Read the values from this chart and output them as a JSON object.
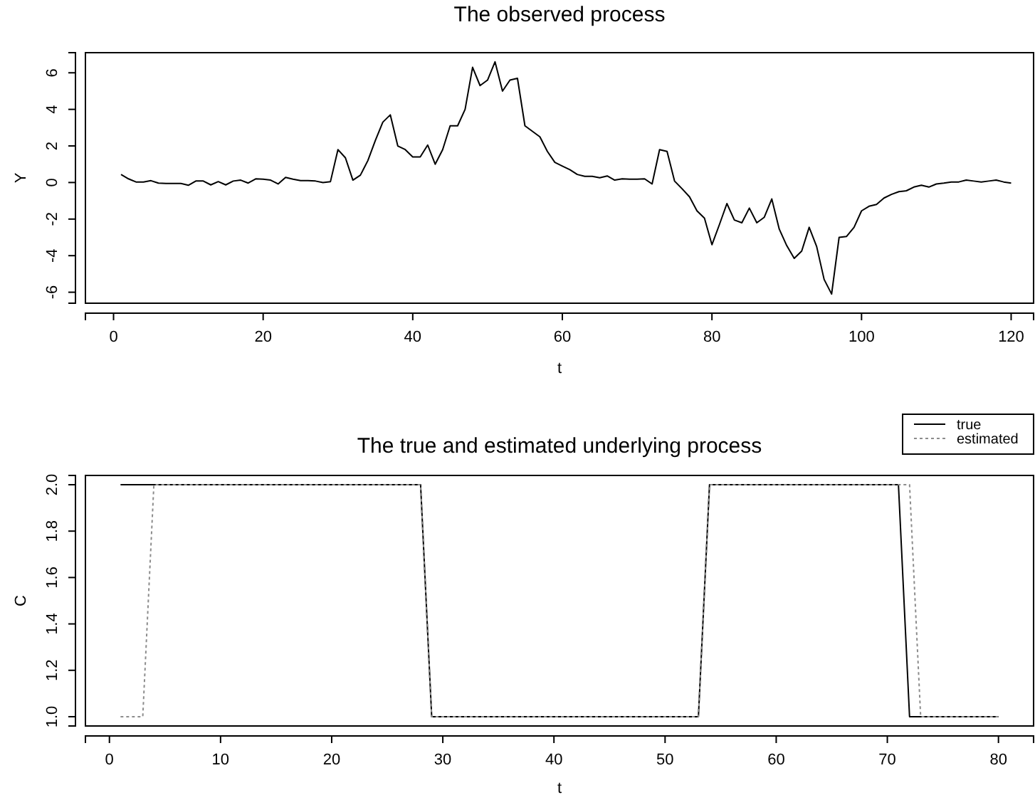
{
  "chart_data": [
    {
      "type": "line",
      "title": "The observed process",
      "xlabel": "t",
      "ylabel": "Y",
      "xlim": [
        -3.76,
        123
      ],
      "ylim": [
        -6.6,
        7.1
      ],
      "xticks": [
        0,
        20,
        40,
        60,
        80,
        100,
        120
      ],
      "yticks": [
        -6,
        -4,
        -2,
        0,
        2,
        4,
        6
      ],
      "grid": false,
      "legend": false,
      "x": [
        1,
        2,
        3,
        4,
        5,
        6,
        7,
        8,
        9,
        10,
        11,
        12,
        13,
        14,
        15,
        16,
        17,
        18,
        19,
        20,
        21,
        22,
        23,
        24,
        25,
        26,
        27,
        28,
        29,
        30,
        31,
        32,
        33,
        34,
        35,
        36,
        37,
        38,
        39,
        40,
        41,
        42,
        43,
        44,
        45,
        46,
        47,
        48,
        49,
        50,
        51,
        52,
        53,
        54,
        55,
        56,
        57,
        58,
        59,
        60,
        61,
        62,
        63,
        64,
        65,
        66,
        67,
        68,
        69,
        70,
        71,
        72,
        73,
        74,
        75,
        76,
        77,
        78,
        79,
        80,
        81,
        82,
        83,
        84,
        85,
        86,
        87,
        88,
        89,
        90,
        91,
        92,
        93,
        94,
        95,
        96,
        97,
        98,
        99,
        100,
        101,
        102,
        103,
        104,
        105,
        106,
        107,
        108,
        109,
        110,
        111,
        112,
        113,
        114,
        115,
        116,
        117,
        118,
        119,
        120
      ],
      "series": [
        {
          "color": "#000000",
          "line_style": "solid",
          "values": [
            0.44,
            0.2,
            0.03,
            0.03,
            0.1,
            -0.03,
            -0.05,
            -0.05,
            -0.05,
            -0.15,
            0.08,
            0.08,
            -0.13,
            0.05,
            -0.13,
            0.08,
            0.13,
            -0.03,
            0.2,
            0.18,
            0.13,
            -0.08,
            0.28,
            0.18,
            0.1,
            0.1,
            0.08,
            0,
            0.05,
            1.8,
            1.35,
            0.13,
            0.4,
            1.2,
            2.3,
            3.3,
            3.7,
            2.0,
            1.8,
            1.4,
            1.4,
            2.05,
            1.0,
            1.8,
            3.1,
            3.1,
            4.0,
            6.3,
            5.3,
            5.6,
            6.6,
            5.0,
            5.6,
            5.7,
            3.1,
            2.8,
            2.5,
            1.7,
            1.1,
            0.9,
            0.7,
            0.44,
            0.34,
            0.34,
            0.26,
            0.36,
            0.13,
            0.2,
            0.18,
            0.18,
            0.2,
            -0.08,
            1.8,
            1.7,
            0.08,
            -0.34,
            -0.78,
            -1.55,
            -1.95,
            -3.4,
            -2.3,
            -1.15,
            -2.05,
            -2.2,
            -1.4,
            -2.2,
            -1.9,
            -0.9,
            -2.55,
            -3.45,
            -4.15,
            -3.75,
            -2.45,
            -3.5,
            -5.3,
            -6.1,
            -3.0,
            -2.95,
            -2.45,
            -1.55,
            -1.3,
            -1.2,
            -0.85,
            -0.65,
            -0.5,
            -0.45,
            -0.25,
            -0.15,
            -0.25,
            -0.08,
            -0.03,
            0.03,
            0.03,
            0.13,
            0.08,
            0.03,
            0.08,
            0.13,
            0.03,
            -0.03
          ]
        }
      ]
    },
    {
      "type": "line",
      "title": "The true and estimated underlying process",
      "xlabel": "t",
      "ylabel": "C",
      "xlim": [
        -2.16,
        83.16
      ],
      "ylim": [
        0.96,
        2.04
      ],
      "xticks": [
        0,
        10,
        20,
        30,
        40,
        50,
        60,
        70,
        80
      ],
      "yticks": [
        {
          "value": 1,
          "label": "1.0"
        },
        {
          "value": 1.2,
          "label": "1.2"
        },
        {
          "value": 1.4,
          "label": "1.4"
        },
        {
          "value": 1.6,
          "label": "1.6"
        },
        {
          "value": 1.8,
          "label": "1.8"
        },
        {
          "value": 2,
          "label": "2.0"
        }
      ],
      "grid": false,
      "legend": "top right",
      "series": [
        {
          "name": "true",
          "color": "#000000",
          "line_style": "solid",
          "x": [
            1,
            28,
            29,
            53,
            54,
            71,
            72,
            80
          ],
          "values": [
            2,
            2,
            1,
            1,
            2,
            2,
            1,
            1
          ]
        },
        {
          "name": "estimated",
          "color": "#8c8c8c",
          "line_style": "dotted",
          "x": [
            1,
            3,
            4,
            28,
            29,
            53,
            54,
            72,
            73,
            80
          ],
          "values": [
            1,
            1,
            2,
            2,
            1,
            1,
            2,
            2,
            1,
            1
          ]
        }
      ]
    }
  ]
}
